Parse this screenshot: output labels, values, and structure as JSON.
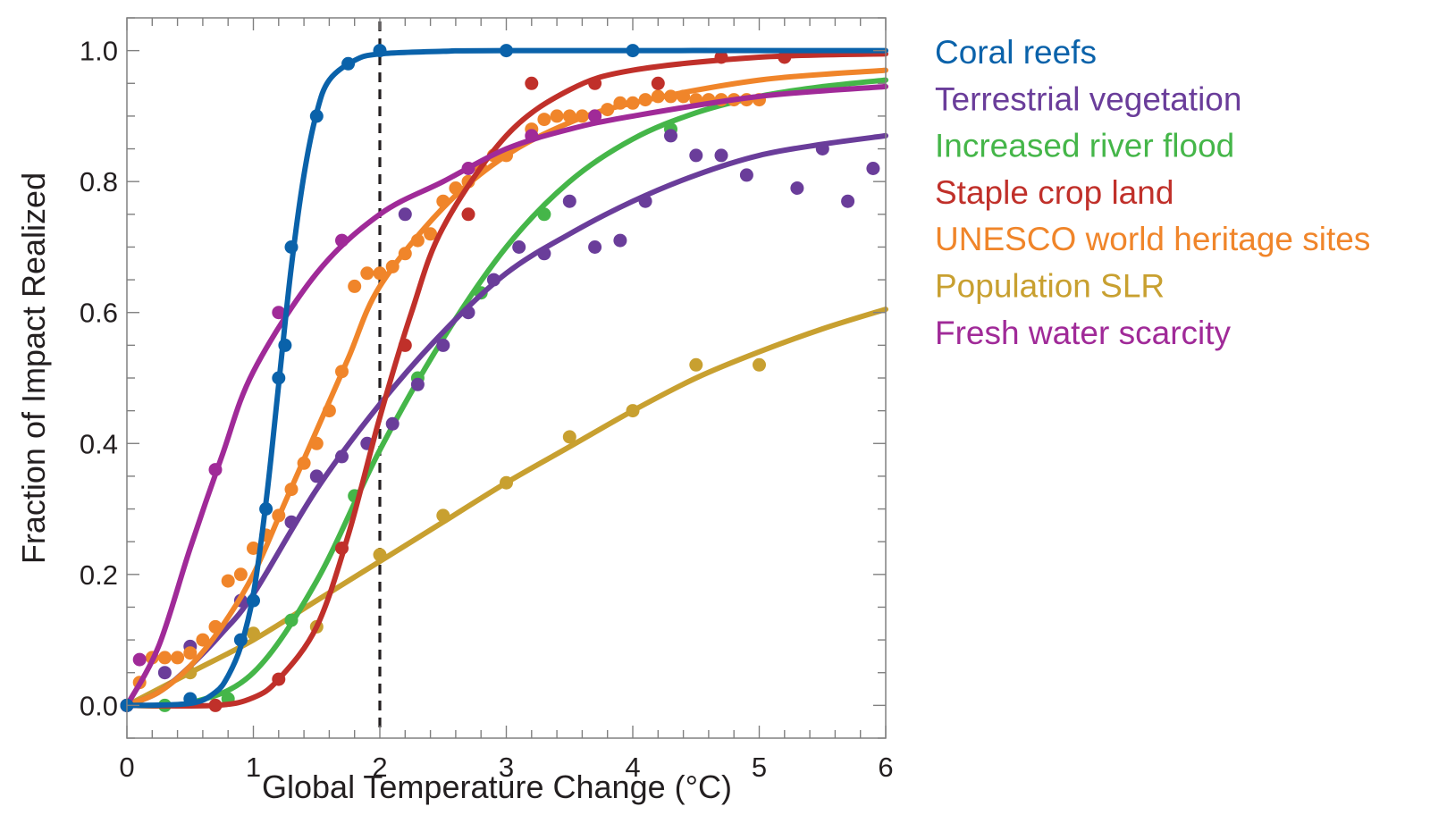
{
  "chart_data": {
    "type": "line",
    "title": "",
    "xlabel": "Global Temperature Change (°C)",
    "ylabel": "Fraction of Impact Realized",
    "xlim": [
      0,
      6
    ],
    "ylim": [
      -0.05,
      1.05
    ],
    "xticks": [
      0,
      1,
      2,
      3,
      4,
      5,
      6
    ],
    "xtick_labels": [
      "0",
      "1",
      "2",
      "3",
      "4",
      "5",
      "6"
    ],
    "x_minor_step": 0.2,
    "yticks": [
      0.0,
      0.2,
      0.4,
      0.6,
      0.8,
      1.0
    ],
    "ytick_labels": [
      "0.0",
      "0.2",
      "0.4",
      "0.6",
      "0.8",
      "1.0"
    ],
    "y_minor_step": 0.05,
    "grid": false,
    "legend_position": "right-outside-top",
    "reference_line": {
      "x": 2,
      "style": "dashed",
      "color": "#231f20"
    },
    "series": [
      {
        "name": "Coral reefs",
        "color": "#0A62AA",
        "points": [
          [
            0,
            0
          ],
          [
            0.5,
            0.01
          ],
          [
            0.9,
            0.1
          ],
          [
            1.0,
            0.16
          ],
          [
            1.1,
            0.3
          ],
          [
            1.2,
            0.5
          ],
          [
            1.25,
            0.55
          ],
          [
            1.3,
            0.7
          ],
          [
            1.5,
            0.9
          ],
          [
            1.75,
            0.98
          ],
          [
            2.0,
            1.0
          ],
          [
            3.0,
            1.0
          ],
          [
            4.0,
            1.0
          ]
        ],
        "fit": [
          [
            0,
            0
          ],
          [
            0.5,
            0.003
          ],
          [
            0.7,
            0.02
          ],
          [
            0.8,
            0.045
          ],
          [
            0.9,
            0.09
          ],
          [
            1.0,
            0.17
          ],
          [
            1.1,
            0.31
          ],
          [
            1.2,
            0.49
          ],
          [
            1.3,
            0.67
          ],
          [
            1.4,
            0.81
          ],
          [
            1.5,
            0.905
          ],
          [
            1.6,
            0.955
          ],
          [
            1.8,
            0.985
          ],
          [
            2.0,
            0.995
          ],
          [
            2.5,
            0.999
          ],
          [
            3,
            1.0
          ],
          [
            6,
            1.0
          ]
        ]
      },
      {
        "name": "Terrestrial vegetation",
        "color": "#6A3D9A",
        "points": [
          [
            0.3,
            0.05
          ],
          [
            0.5,
            0.09
          ],
          [
            0.9,
            0.16
          ],
          [
            1.3,
            0.28
          ],
          [
            1.5,
            0.35
          ],
          [
            1.7,
            0.38
          ],
          [
            1.9,
            0.4
          ],
          [
            2.1,
            0.43
          ],
          [
            2.2,
            0.75
          ],
          [
            2.3,
            0.49
          ],
          [
            2.5,
            0.55
          ],
          [
            2.7,
            0.6
          ],
          [
            2.9,
            0.65
          ],
          [
            3.1,
            0.7
          ],
          [
            3.3,
            0.69
          ],
          [
            3.5,
            0.77
          ],
          [
            3.7,
            0.7
          ],
          [
            3.9,
            0.71
          ],
          [
            4.1,
            0.77
          ],
          [
            4.3,
            0.87
          ],
          [
            4.5,
            0.84
          ],
          [
            4.7,
            0.84
          ],
          [
            4.9,
            0.81
          ],
          [
            5.3,
            0.79
          ],
          [
            5.5,
            0.85
          ],
          [
            5.7,
            0.77
          ],
          [
            5.9,
            0.82
          ]
        ],
        "fit": [
          [
            0,
            0
          ],
          [
            0.25,
            0.02
          ],
          [
            0.5,
            0.06
          ],
          [
            0.75,
            0.11
          ],
          [
            1.0,
            0.17
          ],
          [
            1.5,
            0.33
          ],
          [
            2.0,
            0.46
          ],
          [
            2.5,
            0.57
          ],
          [
            3.0,
            0.66
          ],
          [
            3.5,
            0.72
          ],
          [
            4.0,
            0.77
          ],
          [
            4.5,
            0.81
          ],
          [
            5.0,
            0.84
          ],
          [
            5.5,
            0.857
          ],
          [
            6.0,
            0.87
          ]
        ]
      },
      {
        "name": "Increased river flood",
        "color": "#45B649",
        "points": [
          [
            0.3,
            0.0
          ],
          [
            0.8,
            0.01
          ],
          [
            1.3,
            0.13
          ],
          [
            1.8,
            0.32
          ],
          [
            2.3,
            0.5
          ],
          [
            2.8,
            0.63
          ],
          [
            3.3,
            0.75
          ],
          [
            4.3,
            0.88
          ]
        ],
        "fit": [
          [
            0,
            0
          ],
          [
            0.5,
            0.004
          ],
          [
            1.0,
            0.05
          ],
          [
            1.5,
            0.19
          ],
          [
            2.0,
            0.39
          ],
          [
            2.5,
            0.56
          ],
          [
            3.0,
            0.7
          ],
          [
            3.5,
            0.8
          ],
          [
            4.0,
            0.865
          ],
          [
            4.5,
            0.905
          ],
          [
            5.0,
            0.93
          ],
          [
            5.5,
            0.945
          ],
          [
            6.0,
            0.955
          ]
        ]
      },
      {
        "name": "Staple crop land",
        "color": "#C0302A",
        "points": [
          [
            0,
            0
          ],
          [
            0.7,
            0.0
          ],
          [
            1.2,
            0.04
          ],
          [
            1.7,
            0.24
          ],
          [
            2.2,
            0.55
          ],
          [
            2.7,
            0.75
          ],
          [
            3.2,
            0.95
          ],
          [
            3.7,
            0.95
          ],
          [
            4.2,
            0.95
          ],
          [
            4.7,
            0.99
          ],
          [
            5.2,
            0.99
          ]
        ],
        "fit": [
          [
            0,
            0
          ],
          [
            0.7,
            0.0
          ],
          [
            1.0,
            0.012
          ],
          [
            1.2,
            0.04
          ],
          [
            1.5,
            0.12
          ],
          [
            1.75,
            0.26
          ],
          [
            2.0,
            0.44
          ],
          [
            2.25,
            0.6
          ],
          [
            2.5,
            0.73
          ],
          [
            3.0,
            0.87
          ],
          [
            3.5,
            0.94
          ],
          [
            4.0,
            0.97
          ],
          [
            5.0,
            0.99
          ],
          [
            6.0,
            0.995
          ]
        ]
      },
      {
        "name": "UNESCO world heritage sites",
        "color": "#F0852A",
        "points": [
          [
            0.1,
            0.035
          ],
          [
            0.2,
            0.073
          ],
          [
            0.3,
            0.073
          ],
          [
            0.4,
            0.073
          ],
          [
            0.5,
            0.08
          ],
          [
            0.6,
            0.1
          ],
          [
            0.7,
            0.12
          ],
          [
            0.8,
            0.19
          ],
          [
            0.9,
            0.2
          ],
          [
            1.0,
            0.24
          ],
          [
            1.1,
            0.26
          ],
          [
            1.2,
            0.29
          ],
          [
            1.3,
            0.33
          ],
          [
            1.4,
            0.37
          ],
          [
            1.5,
            0.4
          ],
          [
            1.6,
            0.45
          ],
          [
            1.7,
            0.51
          ],
          [
            1.8,
            0.64
          ],
          [
            1.9,
            0.66
          ],
          [
            2.0,
            0.66
          ],
          [
            2.1,
            0.67
          ],
          [
            2.2,
            0.69
          ],
          [
            2.3,
            0.71
          ],
          [
            2.4,
            0.72
          ],
          [
            2.5,
            0.77
          ],
          [
            2.6,
            0.79
          ],
          [
            2.7,
            0.8
          ],
          [
            2.8,
            0.82
          ],
          [
            2.9,
            0.84
          ],
          [
            3.0,
            0.84
          ],
          [
            3.2,
            0.88
          ],
          [
            3.3,
            0.895
          ],
          [
            3.4,
            0.9
          ],
          [
            3.5,
            0.9
          ],
          [
            3.6,
            0.9
          ],
          [
            3.7,
            0.9
          ],
          [
            3.8,
            0.91
          ],
          [
            3.9,
            0.92
          ],
          [
            4.0,
            0.92
          ],
          [
            4.1,
            0.925
          ],
          [
            4.2,
            0.93
          ],
          [
            4.3,
            0.93
          ],
          [
            4.4,
            0.93
          ],
          [
            4.5,
            0.925
          ],
          [
            4.6,
            0.925
          ],
          [
            4.7,
            0.925
          ],
          [
            4.8,
            0.925
          ],
          [
            4.9,
            0.925
          ],
          [
            5.0,
            0.925
          ]
        ],
        "fit": [
          [
            0,
            0
          ],
          [
            0.25,
            0.02
          ],
          [
            0.5,
            0.06
          ],
          [
            0.75,
            0.12
          ],
          [
            1.0,
            0.2
          ],
          [
            1.25,
            0.31
          ],
          [
            1.5,
            0.42
          ],
          [
            1.75,
            0.53
          ],
          [
            2.0,
            0.64
          ],
          [
            2.5,
            0.76
          ],
          [
            3.0,
            0.84
          ],
          [
            3.5,
            0.89
          ],
          [
            4.0,
            0.92
          ],
          [
            5.0,
            0.955
          ],
          [
            6.0,
            0.97
          ]
        ]
      },
      {
        "name": "Population SLR",
        "color": "#C8A030",
        "points": [
          [
            0,
            0
          ],
          [
            0.5,
            0.05
          ],
          [
            1.0,
            0.11
          ],
          [
            1.5,
            0.12
          ],
          [
            2.0,
            0.23
          ],
          [
            2.5,
            0.29
          ],
          [
            3.0,
            0.34
          ],
          [
            3.5,
            0.41
          ],
          [
            4.0,
            0.45
          ],
          [
            4.5,
            0.52
          ],
          [
            5.0,
            0.52
          ]
        ],
        "fit": [
          [
            0,
            0
          ],
          [
            0.5,
            0.05
          ],
          [
            1.0,
            0.1
          ],
          [
            1.5,
            0.16
          ],
          [
            2.0,
            0.22
          ],
          [
            2.5,
            0.28
          ],
          [
            3.0,
            0.34
          ],
          [
            3.5,
            0.395
          ],
          [
            4.0,
            0.45
          ],
          [
            4.5,
            0.5
          ],
          [
            5.0,
            0.54
          ],
          [
            5.5,
            0.575
          ],
          [
            6.0,
            0.605
          ]
        ]
      },
      {
        "name": "Fresh water scarcity",
        "color": "#A02A98",
        "points": [
          [
            0,
            0
          ],
          [
            0.1,
            0.07
          ],
          [
            0.7,
            0.36
          ],
          [
            1.2,
            0.6
          ],
          [
            1.7,
            0.71
          ],
          [
            2.7,
            0.82
          ],
          [
            3.2,
            0.87
          ],
          [
            3.7,
            0.9
          ]
        ],
        "fit": [
          [
            0,
            0
          ],
          [
            0.25,
            0.09
          ],
          [
            0.5,
            0.24
          ],
          [
            0.75,
            0.38
          ],
          [
            1.0,
            0.51
          ],
          [
            1.5,
            0.66
          ],
          [
            2.0,
            0.75
          ],
          [
            2.5,
            0.8
          ],
          [
            3.0,
            0.85
          ],
          [
            3.5,
            0.88
          ],
          [
            4.0,
            0.9
          ],
          [
            5.0,
            0.93
          ],
          [
            6.0,
            0.945
          ]
        ]
      }
    ]
  }
}
